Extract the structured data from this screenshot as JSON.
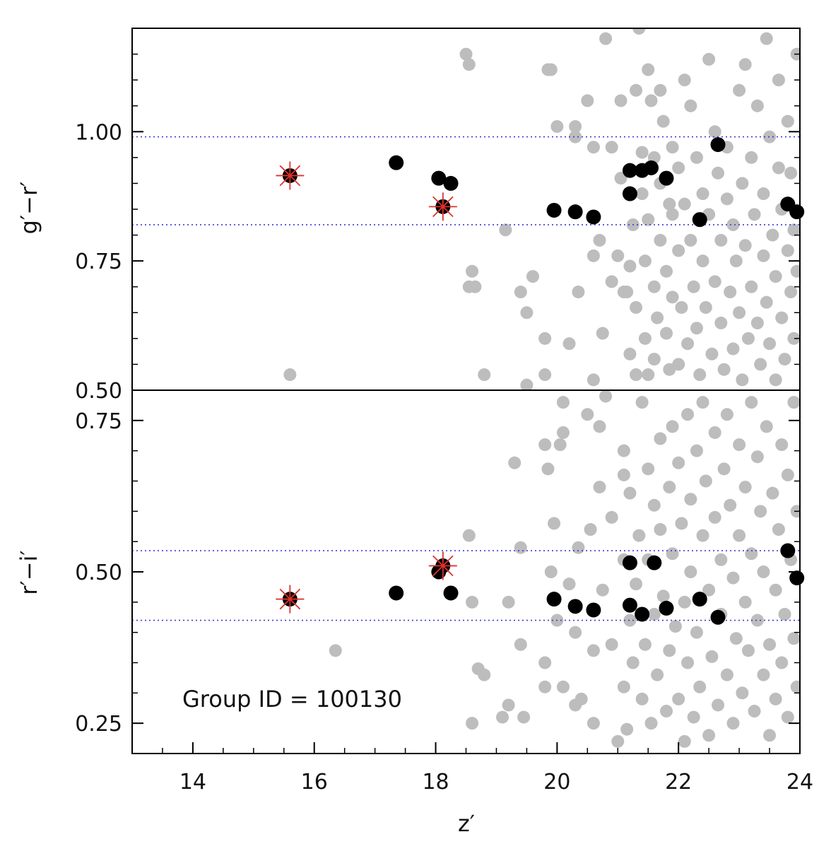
{
  "chart_data": [
    {
      "type": "scatter",
      "panel": "top",
      "ylabel": "g′−r′",
      "xlim": [
        13,
        24
      ],
      "ylim": [
        0.5,
        1.2
      ],
      "yticks": [
        {
          "v": 0.5,
          "label": "0.50"
        },
        {
          "v": 0.75,
          "label": "0.75"
        },
        {
          "v": 1.0,
          "label": "1.00"
        }
      ],
      "hlines": [
        0.99,
        0.82
      ],
      "colors": {
        "background": "#bdbdbd",
        "member": "#000000",
        "bcg_marker": "#e0312b",
        "hline": "#3b3bd6"
      },
      "background_points": [
        [
          15.6,
          0.53
        ],
        [
          18.5,
          1.15
        ],
        [
          18.55,
          1.13
        ],
        [
          18.6,
          0.73
        ],
        [
          18.55,
          0.7
        ],
        [
          18.65,
          0.7
        ],
        [
          18.8,
          0.53
        ],
        [
          19.15,
          0.81
        ],
        [
          19.4,
          0.69
        ],
        [
          19.5,
          0.65
        ],
        [
          19.6,
          0.72
        ],
        [
          19.8,
          0.6
        ],
        [
          19.8,
          0.53
        ],
        [
          19.85,
          1.12
        ],
        [
          19.9,
          1.12
        ],
        [
          19.5,
          0.51
        ],
        [
          20.0,
          1.01
        ],
        [
          20.2,
          0.59
        ],
        [
          20.3,
          1.01
        ],
        [
          20.3,
          0.99
        ],
        [
          20.35,
          0.69
        ],
        [
          20.5,
          1.06
        ],
        [
          20.6,
          0.97
        ],
        [
          20.6,
          0.76
        ],
        [
          20.6,
          0.52
        ],
        [
          20.7,
          0.79
        ],
        [
          20.75,
          0.61
        ],
        [
          20.8,
          1.18
        ],
        [
          20.9,
          0.97
        ],
        [
          20.9,
          0.71
        ],
        [
          21.0,
          0.76
        ],
        [
          21.05,
          1.06
        ],
        [
          21.05,
          0.91
        ],
        [
          21.1,
          0.69
        ],
        [
          21.15,
          0.69
        ],
        [
          21.2,
          0.74
        ],
        [
          21.2,
          0.57
        ],
        [
          21.25,
          0.82
        ],
        [
          21.3,
          1.08
        ],
        [
          21.3,
          0.66
        ],
        [
          21.3,
          0.53
        ],
        [
          21.35,
          1.2
        ],
        [
          21.4,
          0.96
        ],
        [
          21.4,
          0.88
        ],
        [
          21.45,
          0.75
        ],
        [
          21.45,
          0.6
        ],
        [
          21.5,
          1.12
        ],
        [
          21.5,
          0.83
        ],
        [
          21.5,
          0.53
        ],
        [
          21.55,
          1.06
        ],
        [
          21.6,
          0.95
        ],
        [
          21.6,
          0.7
        ],
        [
          21.6,
          0.56
        ],
        [
          21.65,
          0.64
        ],
        [
          21.7,
          1.08
        ],
        [
          21.7,
          0.9
        ],
        [
          21.7,
          0.79
        ],
        [
          21.75,
          1.02
        ],
        [
          21.8,
          0.73
        ],
        [
          21.8,
          0.61
        ],
        [
          21.85,
          0.86
        ],
        [
          21.85,
          0.54
        ],
        [
          21.9,
          0.97
        ],
        [
          21.9,
          0.68
        ],
        [
          21.9,
          0.84
        ],
        [
          22.0,
          0.93
        ],
        [
          22.0,
          0.77
        ],
        [
          22.0,
          0.55
        ],
        [
          22.05,
          0.66
        ],
        [
          22.1,
          1.1
        ],
        [
          22.1,
          0.86
        ],
        [
          22.15,
          0.59
        ],
        [
          22.2,
          1.05
        ],
        [
          22.2,
          0.79
        ],
        [
          22.25,
          0.7
        ],
        [
          22.3,
          0.95
        ],
        [
          22.3,
          0.62
        ],
        [
          22.35,
          0.53
        ],
        [
          22.4,
          0.88
        ],
        [
          22.4,
          0.75
        ],
        [
          22.45,
          0.66
        ],
        [
          22.5,
          1.14
        ],
        [
          22.5,
          0.84
        ],
        [
          22.55,
          0.57
        ],
        [
          22.6,
          1.0
        ],
        [
          22.6,
          0.71
        ],
        [
          22.65,
          0.92
        ],
        [
          22.7,
          0.79
        ],
        [
          22.7,
          0.63
        ],
        [
          22.75,
          0.54
        ],
        [
          22.8,
          0.97
        ],
        [
          22.8,
          0.87
        ],
        [
          22.85,
          0.69
        ],
        [
          22.9,
          0.82
        ],
        [
          22.9,
          0.58
        ],
        [
          22.95,
          0.75
        ],
        [
          23.0,
          1.08
        ],
        [
          23.0,
          0.65
        ],
        [
          23.05,
          0.9
        ],
        [
          23.05,
          0.52
        ],
        [
          23.1,
          1.13
        ],
        [
          23.1,
          0.78
        ],
        [
          23.15,
          0.6
        ],
        [
          23.2,
          0.95
        ],
        [
          23.2,
          0.7
        ],
        [
          23.25,
          0.84
        ],
        [
          23.3,
          1.05
        ],
        [
          23.3,
          0.63
        ],
        [
          23.35,
          0.55
        ],
        [
          23.4,
          0.76
        ],
        [
          23.4,
          0.88
        ],
        [
          23.45,
          1.18
        ],
        [
          23.45,
          0.67
        ],
        [
          23.5,
          0.99
        ],
        [
          23.5,
          0.59
        ],
        [
          23.55,
          0.8
        ],
        [
          23.6,
          0.72
        ],
        [
          23.6,
          0.52
        ],
        [
          23.65,
          1.1
        ],
        [
          23.65,
          0.93
        ],
        [
          23.7,
          0.64
        ],
        [
          23.7,
          0.85
        ],
        [
          23.75,
          0.56
        ],
        [
          23.8,
          0.77
        ],
        [
          23.8,
          1.02
        ],
        [
          23.85,
          0.69
        ],
        [
          23.85,
          0.92
        ],
        [
          23.9,
          0.6
        ],
        [
          23.9,
          0.81
        ],
        [
          23.95,
          1.15
        ],
        [
          23.95,
          0.73
        ]
      ],
      "member_points": [
        {
          "x": 15.6,
          "y": 0.915,
          "bcg": true
        },
        {
          "x": 17.35,
          "y": 0.94,
          "bcg": false
        },
        {
          "x": 18.05,
          "y": 0.91,
          "bcg": false
        },
        {
          "x": 18.25,
          "y": 0.9,
          "bcg": false
        },
        {
          "x": 18.12,
          "y": 0.855,
          "bcg": true
        },
        {
          "x": 19.95,
          "y": 0.848,
          "bcg": false
        },
        {
          "x": 20.3,
          "y": 0.845,
          "bcg": false
        },
        {
          "x": 20.6,
          "y": 0.835,
          "bcg": false
        },
        {
          "x": 21.2,
          "y": 0.925,
          "bcg": false
        },
        {
          "x": 21.2,
          "y": 0.88,
          "bcg": false
        },
        {
          "x": 21.4,
          "y": 0.925,
          "bcg": false
        },
        {
          "x": 21.55,
          "y": 0.93,
          "bcg": false
        },
        {
          "x": 21.8,
          "y": 0.91,
          "bcg": false
        },
        {
          "x": 22.35,
          "y": 0.83,
          "bcg": false
        },
        {
          "x": 22.65,
          "y": 0.975,
          "bcg": false
        },
        {
          "x": 23.8,
          "y": 0.86,
          "bcg": false
        },
        {
          "x": 23.95,
          "y": 0.845,
          "bcg": false
        }
      ]
    },
    {
      "type": "scatter",
      "panel": "bottom",
      "ylabel": "r′−i′",
      "xlabel": "z′",
      "annotation": "Group ID = 100130",
      "xlim": [
        13,
        24
      ],
      "ylim": [
        0.2,
        0.8
      ],
      "xticks": [
        {
          "v": 14,
          "label": "14"
        },
        {
          "v": 16,
          "label": "16"
        },
        {
          "v": 18,
          "label": "18"
        },
        {
          "v": 20,
          "label": "20"
        },
        {
          "v": 22,
          "label": "22"
        },
        {
          "v": 24,
          "label": "24"
        }
      ],
      "yticks": [
        {
          "v": 0.25,
          "label": "0.25"
        },
        {
          "v": 0.5,
          "label": "0.50"
        },
        {
          "v": 0.75,
          "label": "0.75"
        }
      ],
      "hlines": [
        0.535,
        0.42
      ],
      "colors": {
        "background": "#bdbdbd",
        "member": "#000000",
        "bcg_marker": "#e0312b",
        "hline": "#3b3bd6"
      },
      "background_points": [
        [
          16.35,
          0.37
        ],
        [
          18.55,
          0.56
        ],
        [
          18.6,
          0.45
        ],
        [
          18.6,
          0.25
        ],
        [
          18.7,
          0.34
        ],
        [
          18.8,
          0.33
        ],
        [
          19.1,
          0.26
        ],
        [
          19.2,
          0.45
        ],
        [
          19.2,
          0.28
        ],
        [
          19.3,
          0.68
        ],
        [
          19.4,
          0.38
        ],
        [
          19.4,
          0.54
        ],
        [
          19.45,
          0.26
        ],
        [
          19.8,
          0.71
        ],
        [
          19.8,
          0.35
        ],
        [
          19.8,
          0.31
        ],
        [
          19.85,
          0.67
        ],
        [
          19.9,
          0.5
        ],
        [
          19.95,
          0.58
        ],
        [
          20.0,
          0.42
        ],
        [
          20.05,
          0.71
        ],
        [
          20.1,
          0.73
        ],
        [
          20.1,
          0.78
        ],
        [
          20.1,
          0.31
        ],
        [
          20.2,
          0.48
        ],
        [
          20.3,
          0.4
        ],
        [
          20.3,
          0.28
        ],
        [
          20.35,
          0.54
        ],
        [
          20.4,
          0.29
        ],
        [
          20.5,
          0.76
        ],
        [
          20.55,
          0.57
        ],
        [
          20.6,
          0.37
        ],
        [
          20.6,
          0.25
        ],
        [
          20.7,
          0.74
        ],
        [
          20.7,
          0.64
        ],
        [
          20.75,
          0.47
        ],
        [
          20.8,
          0.79
        ],
        [
          20.9,
          0.59
        ],
        [
          20.9,
          0.38
        ],
        [
          21.0,
          0.22
        ],
        [
          21.1,
          0.7
        ],
        [
          21.1,
          0.66
        ],
        [
          21.1,
          0.52
        ],
        [
          21.1,
          0.31
        ],
        [
          21.15,
          0.24
        ],
        [
          21.2,
          0.63
        ],
        [
          21.2,
          0.42
        ],
        [
          21.25,
          0.35
        ],
        [
          21.3,
          0.48
        ],
        [
          21.35,
          0.56
        ],
        [
          21.4,
          0.29
        ],
        [
          21.4,
          0.78
        ],
        [
          21.45,
          0.38
        ],
        [
          21.5,
          0.67
        ],
        [
          21.5,
          0.52
        ],
        [
          21.55,
          0.25
        ],
        [
          21.6,
          0.61
        ],
        [
          21.6,
          0.43
        ],
        [
          21.65,
          0.33
        ],
        [
          21.7,
          0.57
        ],
        [
          21.7,
          0.72
        ],
        [
          21.75,
          0.46
        ],
        [
          21.8,
          0.27
        ],
        [
          21.85,
          0.64
        ],
        [
          21.85,
          0.37
        ],
        [
          21.9,
          0.74
        ],
        [
          21.9,
          0.53
        ],
        [
          21.95,
          0.41
        ],
        [
          22.0,
          0.29
        ],
        [
          22.0,
          0.68
        ],
        [
          22.05,
          0.58
        ],
        [
          22.1,
          0.22
        ],
        [
          22.1,
          0.45
        ],
        [
          22.15,
          0.76
        ],
        [
          22.15,
          0.35
        ],
        [
          22.2,
          0.62
        ],
        [
          22.2,
          0.5
        ],
        [
          22.25,
          0.26
        ],
        [
          22.3,
          0.7
        ],
        [
          22.3,
          0.4
        ],
        [
          22.35,
          0.31
        ],
        [
          22.4,
          0.56
        ],
        [
          22.4,
          0.78
        ],
        [
          22.45,
          0.65
        ],
        [
          22.5,
          0.47
        ],
        [
          22.5,
          0.23
        ],
        [
          22.55,
          0.36
        ],
        [
          22.6,
          0.73
        ],
        [
          22.6,
          0.59
        ],
        [
          22.65,
          0.28
        ],
        [
          22.7,
          0.52
        ],
        [
          22.7,
          0.43
        ],
        [
          22.75,
          0.67
        ],
        [
          22.8,
          0.33
        ],
        [
          22.8,
          0.76
        ],
        [
          22.85,
          0.61
        ],
        [
          22.9,
          0.49
        ],
        [
          22.9,
          0.25
        ],
        [
          22.95,
          0.39
        ],
        [
          23.0,
          0.71
        ],
        [
          23.0,
          0.56
        ],
        [
          23.05,
          0.3
        ],
        [
          23.1,
          0.64
        ],
        [
          23.1,
          0.45
        ],
        [
          23.15,
          0.37
        ],
        [
          23.2,
          0.78
        ],
        [
          23.2,
          0.53
        ],
        [
          23.25,
          0.27
        ],
        [
          23.3,
          0.69
        ],
        [
          23.3,
          0.42
        ],
        [
          23.35,
          0.6
        ],
        [
          23.4,
          0.33
        ],
        [
          23.4,
          0.5
        ],
        [
          23.45,
          0.74
        ],
        [
          23.5,
          0.38
        ],
        [
          23.5,
          0.23
        ],
        [
          23.55,
          0.63
        ],
        [
          23.6,
          0.47
        ],
        [
          23.6,
          0.29
        ],
        [
          23.65,
          0.57
        ],
        [
          23.7,
          0.71
        ],
        [
          23.7,
          0.35
        ],
        [
          23.75,
          0.43
        ],
        [
          23.8,
          0.66
        ],
        [
          23.8,
          0.26
        ],
        [
          23.85,
          0.52
        ],
        [
          23.9,
          0.78
        ],
        [
          23.9,
          0.39
        ],
        [
          23.95,
          0.6
        ],
        [
          23.95,
          0.31
        ]
      ],
      "member_points": [
        {
          "x": 15.6,
          "y": 0.455,
          "bcg": true
        },
        {
          "x": 17.35,
          "y": 0.465,
          "bcg": false
        },
        {
          "x": 18.05,
          "y": 0.5,
          "bcg": false
        },
        {
          "x": 18.25,
          "y": 0.465,
          "bcg": false
        },
        {
          "x": 18.12,
          "y": 0.51,
          "bcg": true
        },
        {
          "x": 19.95,
          "y": 0.455,
          "bcg": false
        },
        {
          "x": 20.3,
          "y": 0.443,
          "bcg": false
        },
        {
          "x": 20.6,
          "y": 0.437,
          "bcg": false
        },
        {
          "x": 21.2,
          "y": 0.515,
          "bcg": false
        },
        {
          "x": 21.2,
          "y": 0.445,
          "bcg": false
        },
        {
          "x": 21.4,
          "y": 0.43,
          "bcg": false
        },
        {
          "x": 21.6,
          "y": 0.515,
          "bcg": false
        },
        {
          "x": 21.8,
          "y": 0.44,
          "bcg": false
        },
        {
          "x": 22.35,
          "y": 0.455,
          "bcg": false
        },
        {
          "x": 22.65,
          "y": 0.425,
          "bcg": false
        },
        {
          "x": 23.8,
          "y": 0.535,
          "bcg": false
        },
        {
          "x": 23.95,
          "y": 0.49,
          "bcg": false
        }
      ]
    }
  ]
}
